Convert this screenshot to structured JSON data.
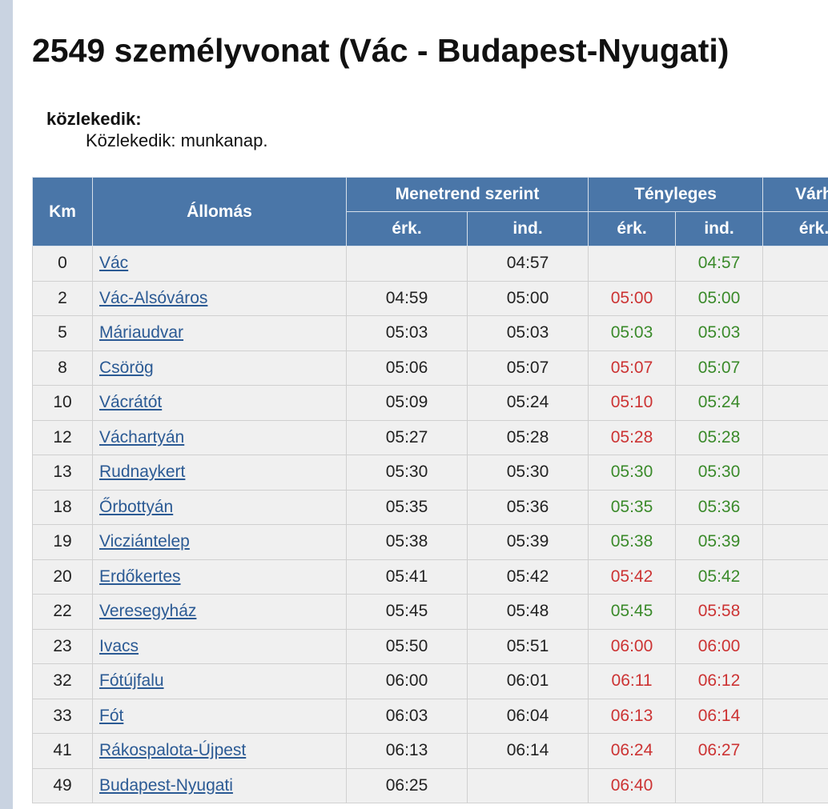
{
  "title": "2549 személyvonat (Vác - Budapest-Nyugati)",
  "running": {
    "label": "közlekedik:",
    "value": "Közlekedik: munkanap."
  },
  "table": {
    "headers": {
      "km": "Km",
      "station": "Állomás",
      "scheduled": "Menetrend szerint",
      "actual": "Tényleges",
      "expected": "Várh",
      "arr": "érk.",
      "dep": "ind."
    },
    "rows": [
      {
        "km": "0",
        "station": "Vác",
        "sched_arr": "",
        "sched_dep": "04:57",
        "act_arr": "",
        "act_dep": "04:57",
        "act_arr_status": "",
        "act_dep_status": "ontime"
      },
      {
        "km": "2",
        "station": "Vác-Alsóváros",
        "sched_arr": "04:59",
        "sched_dep": "05:00",
        "act_arr": "05:00",
        "act_dep": "05:00",
        "act_arr_status": "late",
        "act_dep_status": "ontime"
      },
      {
        "km": "5",
        "station": "Máriaudvar",
        "sched_arr": "05:03",
        "sched_dep": "05:03",
        "act_arr": "05:03",
        "act_dep": "05:03",
        "act_arr_status": "ontime",
        "act_dep_status": "ontime"
      },
      {
        "km": "8",
        "station": "Csörög",
        "sched_arr": "05:06",
        "sched_dep": "05:07",
        "act_arr": "05:07",
        "act_dep": "05:07",
        "act_arr_status": "late",
        "act_dep_status": "ontime"
      },
      {
        "km": "10",
        "station": "Vácrátót",
        "sched_arr": "05:09",
        "sched_dep": "05:24",
        "act_arr": "05:10",
        "act_dep": "05:24",
        "act_arr_status": "late",
        "act_dep_status": "ontime"
      },
      {
        "km": "12",
        "station": "Váchartyán",
        "sched_arr": "05:27",
        "sched_dep": "05:28",
        "act_arr": "05:28",
        "act_dep": "05:28",
        "act_arr_status": "late",
        "act_dep_status": "ontime"
      },
      {
        "km": "13",
        "station": "Rudnaykert",
        "sched_arr": "05:30",
        "sched_dep": "05:30",
        "act_arr": "05:30",
        "act_dep": "05:30",
        "act_arr_status": "ontime",
        "act_dep_status": "ontime"
      },
      {
        "km": "18",
        "station": "Őrbottyán",
        "sched_arr": "05:35",
        "sched_dep": "05:36",
        "act_arr": "05:35",
        "act_dep": "05:36",
        "act_arr_status": "ontime",
        "act_dep_status": "ontime"
      },
      {
        "km": "19",
        "station": "Vicziántelep",
        "sched_arr": "05:38",
        "sched_dep": "05:39",
        "act_arr": "05:38",
        "act_dep": "05:39",
        "act_arr_status": "ontime",
        "act_dep_status": "ontime"
      },
      {
        "km": "20",
        "station": "Erdőkertes",
        "sched_arr": "05:41",
        "sched_dep": "05:42",
        "act_arr": "05:42",
        "act_dep": "05:42",
        "act_arr_status": "late",
        "act_dep_status": "ontime"
      },
      {
        "km": "22",
        "station": "Veresegyház",
        "sched_arr": "05:45",
        "sched_dep": "05:48",
        "act_arr": "05:45",
        "act_dep": "05:58",
        "act_arr_status": "ontime",
        "act_dep_status": "late"
      },
      {
        "km": "23",
        "station": "Ivacs",
        "sched_arr": "05:50",
        "sched_dep": "05:51",
        "act_arr": "06:00",
        "act_dep": "06:00",
        "act_arr_status": "late",
        "act_dep_status": "late"
      },
      {
        "km": "32",
        "station": "Fótújfalu",
        "sched_arr": "06:00",
        "sched_dep": "06:01",
        "act_arr": "06:11",
        "act_dep": "06:12",
        "act_arr_status": "late",
        "act_dep_status": "late"
      },
      {
        "km": "33",
        "station": "Fót",
        "sched_arr": "06:03",
        "sched_dep": "06:04",
        "act_arr": "06:13",
        "act_dep": "06:14",
        "act_arr_status": "late",
        "act_dep_status": "late"
      },
      {
        "km": "41",
        "station": "Rákospalota-Újpest",
        "sched_arr": "06:13",
        "sched_dep": "06:14",
        "act_arr": "06:24",
        "act_dep": "06:27",
        "act_arr_status": "late",
        "act_dep_status": "late"
      },
      {
        "km": "49",
        "station": "Budapest-Nyugati",
        "sched_arr": "06:25",
        "sched_dep": "",
        "act_arr": "06:40",
        "act_dep": "",
        "act_arr_status": "late",
        "act_dep_status": ""
      }
    ]
  },
  "colors": {
    "header_bg": "#4a76a8",
    "late": "#cc3333",
    "ontime": "#3a8a2a",
    "link": "#2b5a94"
  }
}
